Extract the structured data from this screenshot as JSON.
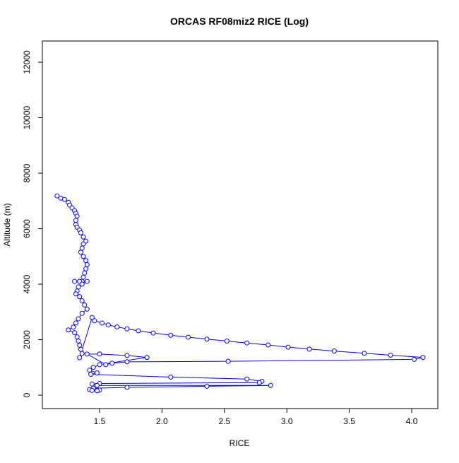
{
  "chart_data": {
    "type": "scatter",
    "title": "ORCAS RF08miz2 RICE (Log)",
    "x_label": "RICE",
    "y_label": "Altitude (m)",
    "color": "#0000ff",
    "connect": true,
    "xlim": [
      1.042,
      4.209
    ],
    "ylim": [
      -484,
      12764
    ],
    "xticks": [
      1.5,
      {
        "value": 2,
        "label": "2.0"
      },
      2.5,
      {
        "value": 3,
        "label": "3.0"
      },
      3.5,
      {
        "value": 4,
        "label": "4.0"
      }
    ],
    "yticks": [
      0,
      2000,
      4000,
      6000,
      8000,
      10000,
      12000
    ],
    "x": [
      1.16,
      1.19,
      1.22,
      1.25,
      1.26,
      1.28,
      1.3,
      1.31,
      1.32,
      1.31,
      1.31,
      1.32,
      1.34,
      1.35,
      1.37,
      1.39,
      1.37,
      1.36,
      1.35,
      1.37,
      1.39,
      1.4,
      1.39,
      1.38,
      1.37,
      1.36,
      1.3,
      1.34,
      1.4,
      1.36,
      1.33,
      1.32,
      1.31,
      1.34,
      1.36,
      1.38,
      1.4,
      1.36,
      1.33,
      1.31,
      1.29,
      1.25,
      1.3,
      1.32,
      1.33,
      1.34,
      1.35,
      1.36,
      1.34,
      1.44,
      1.46,
      1.52,
      1.57,
      1.64,
      1.72,
      1.81,
      1.93,
      2.07,
      2.21,
      2.36,
      2.52,
      2.68,
      2.85,
      3.01,
      3.18,
      3.38,
      3.62,
      3.83,
      4.09,
      4.02,
      2.53,
      1.72,
      1.6,
      1.55,
      1.4,
      1.5,
      1.72,
      1.88,
      1.5,
      1.45,
      1.42,
      1.48,
      1.43,
      2.07,
      2.68,
      2.8,
      2.78,
      1.5,
      1.44,
      1.48,
      2.87,
      2.36,
      1.72,
      1.45,
      1.42,
      1.5,
      1.44,
      1.48
    ],
    "y": [
      7180,
      7100,
      7050,
      6950,
      6850,
      6750,
      6650,
      6550,
      6450,
      6300,
      6150,
      6050,
      5950,
      5850,
      5700,
      5550,
      5450,
      5300,
      5150,
      5000,
      4850,
      4700,
      4550,
      4400,
      4250,
      4100,
      4100,
      4100,
      4100,
      4000,
      3900,
      3750,
      3650,
      3550,
      3400,
      3250,
      3100,
      2950,
      2750,
      2600,
      2450,
      2350,
      2250,
      2100,
      1950,
      1800,
      1650,
      1500,
      1350,
      2800,
      2680,
      2600,
      2530,
      2460,
      2390,
      2320,
      2240,
      2160,
      2090,
      2020,
      1950,
      1880,
      1810,
      1730,
      1660,
      1590,
      1510,
      1440,
      1360,
      1290,
      1220,
      1200,
      1150,
      1100,
      1480,
      1480,
      1430,
      1360,
      1100,
      1000,
      900,
      800,
      750,
      650,
      580,
      500,
      450,
      420,
      400,
      350,
      350,
      320,
      280,
      250,
      200,
      180,
      170,
      160
    ]
  }
}
